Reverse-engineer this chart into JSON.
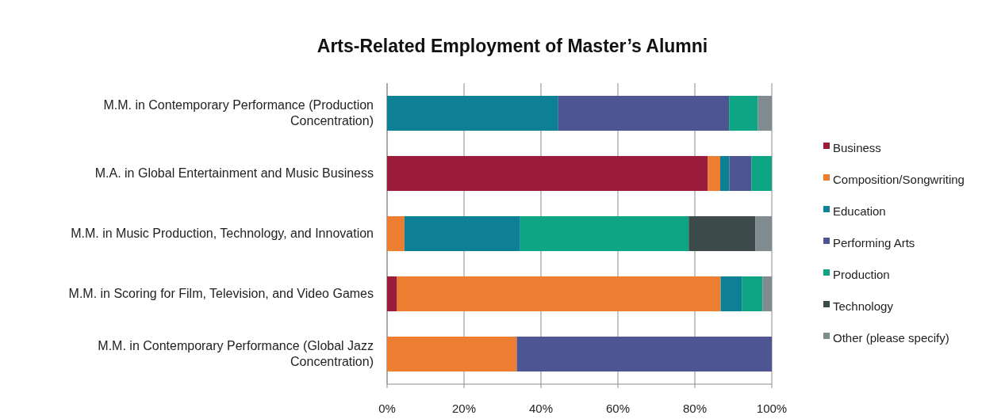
{
  "chart_data": {
    "type": "bar",
    "title": "Arts-Related Employment of Master’s Alumni",
    "orientation": "horizontal",
    "stacked": true,
    "categories": [
      "M.M. in Contemporary Performance (Production Concentration)",
      "M.A. in Global Entertainment and Music Business",
      "M.M. in Music Production, Technology, and Innovation",
      "M.M. in Scoring for Film, Television, and Video Games",
      "M.M. in Contemporary Performance (Global Jazz Concentration)"
    ],
    "series": [
      {
        "name": "Business",
        "color": "#9b1b3a",
        "values": [
          0,
          83.4,
          0,
          2.6,
          0
        ]
      },
      {
        "name": "Composition/Songwriting",
        "color": "#ed7d31",
        "values": [
          0,
          3.2,
          4.5,
          84.1,
          33.7
        ]
      },
      {
        "name": "Education",
        "color": "#0e8096",
        "values": [
          44.5,
          2.4,
          30.1,
          5.5,
          0
        ]
      },
      {
        "name": "Performing Arts",
        "color": "#4e5593",
        "values": [
          44.4,
          5.7,
          0,
          0,
          66.3
        ]
      },
      {
        "name": "Production",
        "color": "#0ea584",
        "values": [
          7.5,
          5.3,
          43.8,
          5.4,
          0
        ]
      },
      {
        "name": "Technology",
        "color": "#3c4a4a",
        "values": [
          0,
          0,
          17.3,
          0,
          0
        ]
      },
      {
        "name": "Other (please specify)",
        "color": "#808b8f",
        "values": [
          3.6,
          0,
          4.3,
          2.4,
          0
        ]
      }
    ],
    "xlim": [
      0,
      100
    ],
    "xticks": [
      {
        "value": 0,
        "label": "0%"
      },
      {
        "value": 20,
        "label": "20%"
      },
      {
        "value": 40,
        "label": "40%"
      },
      {
        "value": 60,
        "label": "60%"
      },
      {
        "value": 80,
        "label": "80%"
      },
      {
        "value": 100,
        "label": "100%"
      }
    ],
    "grid": "x",
    "legend": "right"
  }
}
